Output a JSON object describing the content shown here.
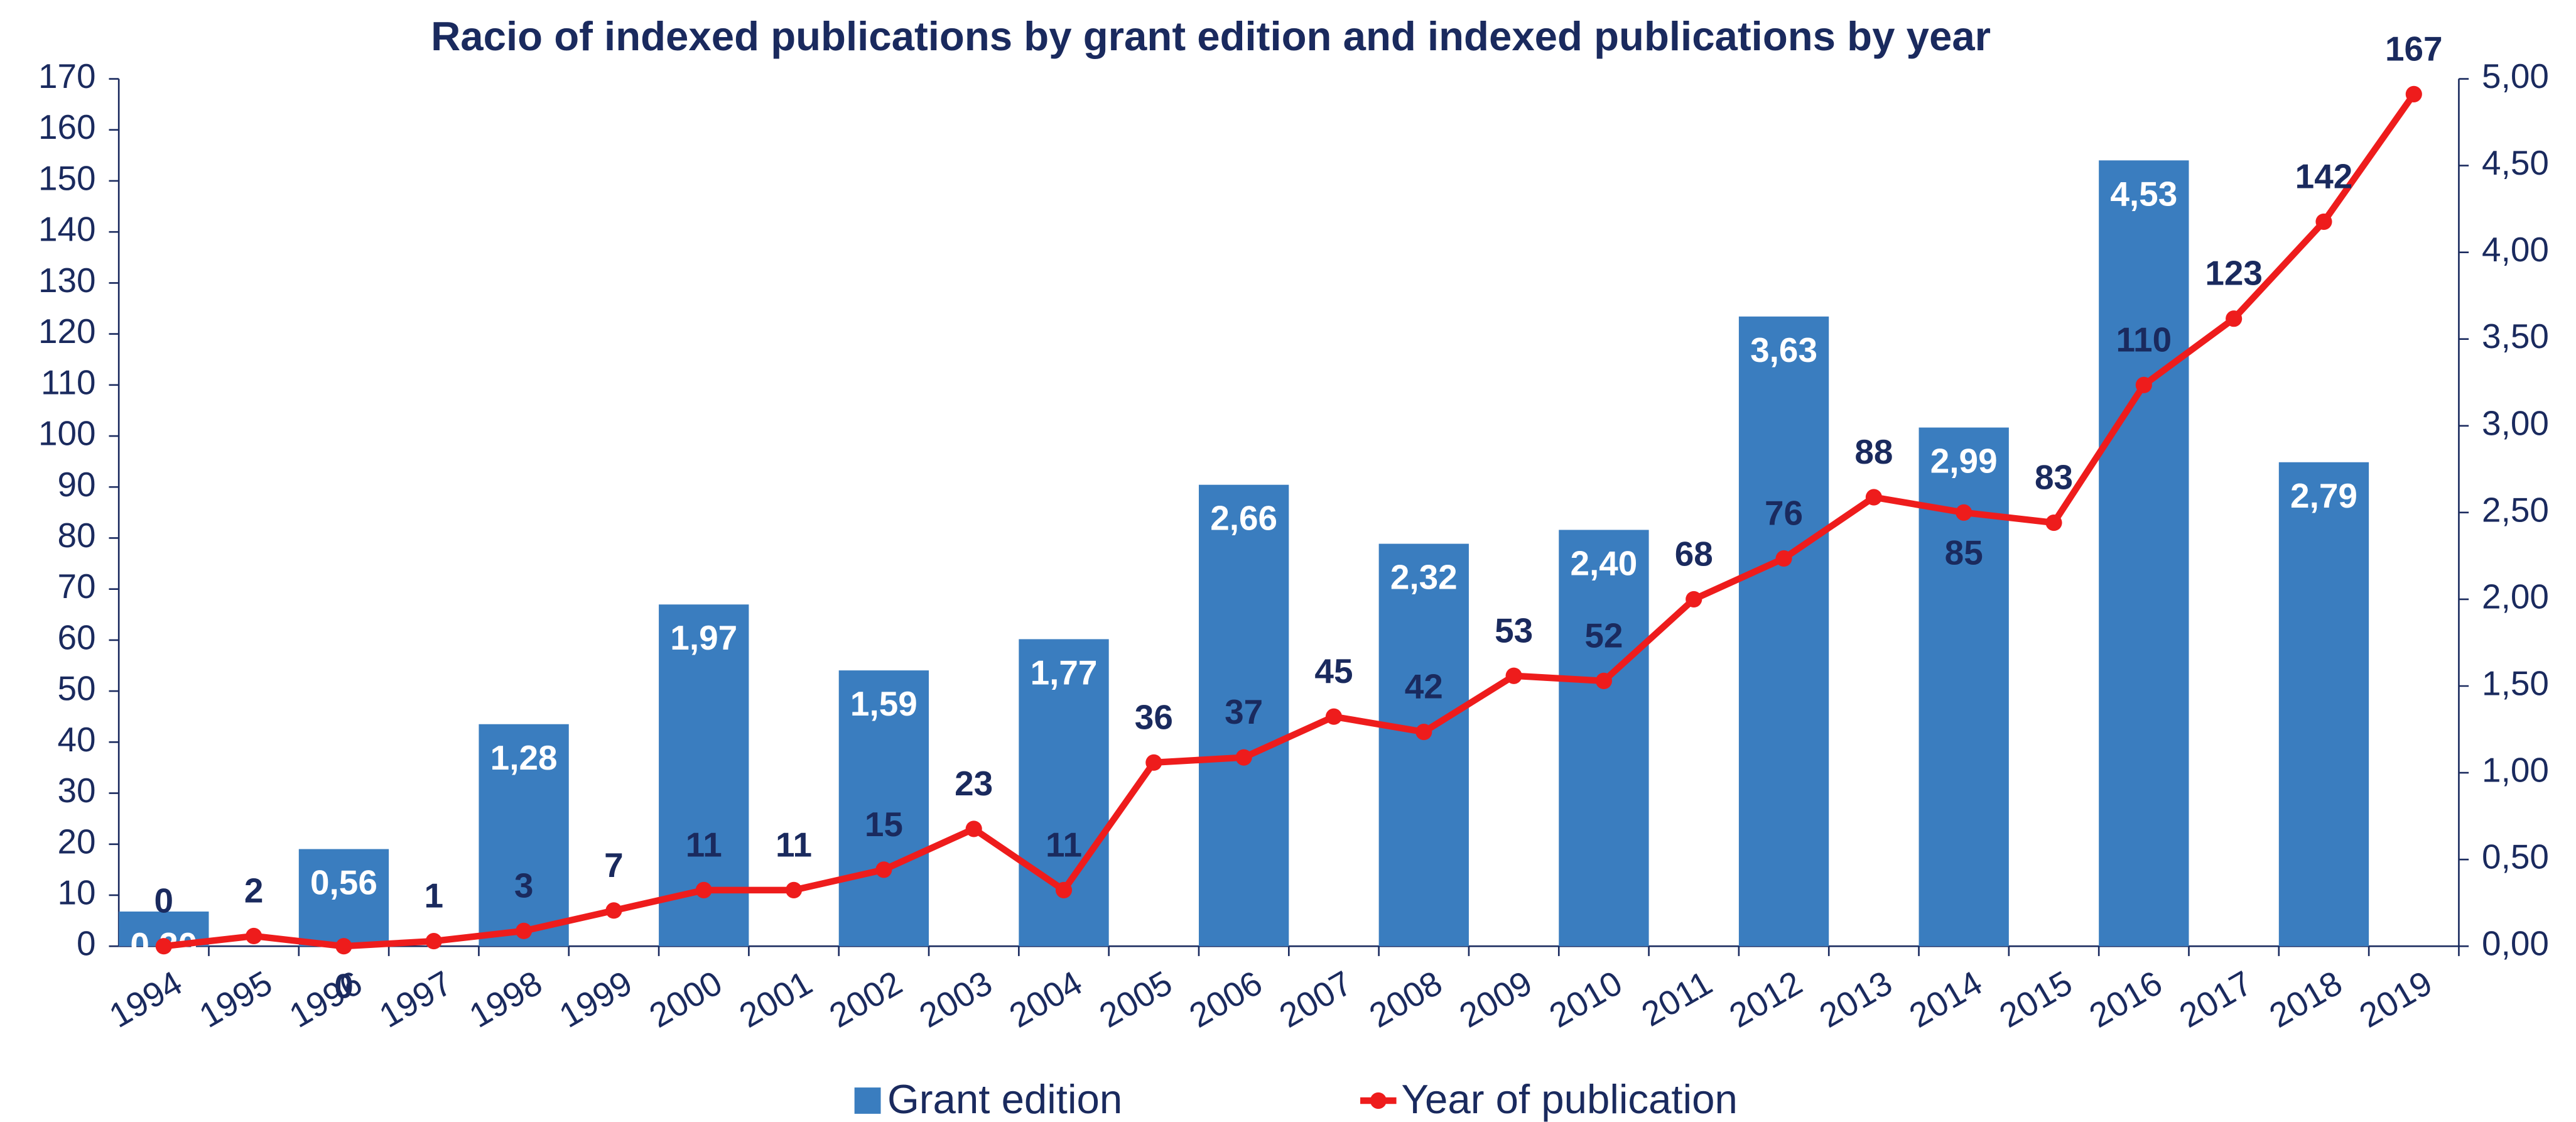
{
  "chart_data": {
    "type": "bar-line",
    "title": "Racio of indexed publications by grant edition and indexed publications by year",
    "categories": [
      "1994",
      "1995",
      "1996",
      "1997",
      "1998",
      "1999",
      "2000",
      "2001",
      "2002",
      "2003",
      "2004",
      "2005",
      "2006",
      "2007",
      "2008",
      "2009",
      "2010",
      "2011",
      "2012",
      "2013",
      "2014",
      "2015",
      "2016",
      "2017",
      "2018",
      "2019"
    ],
    "series": [
      {
        "name": "Grant edition",
        "type": "bar",
        "axis": "y2",
        "color": "#3a7dbf",
        "values": [
          0.2,
          null,
          0.56,
          null,
          1.28,
          null,
          1.97,
          null,
          1.59,
          null,
          1.77,
          null,
          2.66,
          null,
          2.32,
          null,
          2.4,
          null,
          3.63,
          null,
          2.99,
          null,
          4.53,
          null,
          2.79,
          null
        ],
        "value_labels": [
          "0,20",
          null,
          "0,56",
          null,
          "1,28",
          null,
          "1,97",
          null,
          "1,59",
          null,
          "1,77",
          null,
          "2,66",
          null,
          "2,32",
          null,
          "2,40",
          null,
          "3,63",
          null,
          "2,99",
          null,
          "4,53",
          null,
          "2,79",
          null
        ]
      },
      {
        "name": "Year of publication",
        "type": "line",
        "axis": "y",
        "color": "#ee1c1c",
        "values": [
          0,
          2,
          0,
          1,
          3,
          7,
          11,
          11,
          15,
          23,
          11,
          36,
          37,
          45,
          42,
          53,
          52,
          68,
          76,
          88,
          85,
          83,
          110,
          123,
          142,
          167
        ]
      }
    ],
    "ylim": [
      0,
      170
    ],
    "yticks": [
      0,
      10,
      20,
      30,
      40,
      50,
      60,
      70,
      80,
      90,
      100,
      110,
      120,
      130,
      140,
      150,
      160,
      170
    ],
    "y2lim": [
      0,
      5
    ],
    "y2ticks": [
      {
        "value": 0,
        "label": "0,00"
      },
      {
        "value": 0.5,
        "label": "0,50"
      },
      {
        "value": 1,
        "label": "1,00"
      },
      {
        "value": 1.5,
        "label": "1,50"
      },
      {
        "value": 2,
        "label": "2,00"
      },
      {
        "value": 2.5,
        "label": "2,50"
      },
      {
        "value": 3,
        "label": "3,00"
      },
      {
        "value": 3.5,
        "label": "3,50"
      },
      {
        "value": 4,
        "label": "4,00"
      },
      {
        "value": 4.5,
        "label": "4,50"
      },
      {
        "value": 5,
        "label": "5,00"
      }
    ],
    "legend": "bottom"
  }
}
